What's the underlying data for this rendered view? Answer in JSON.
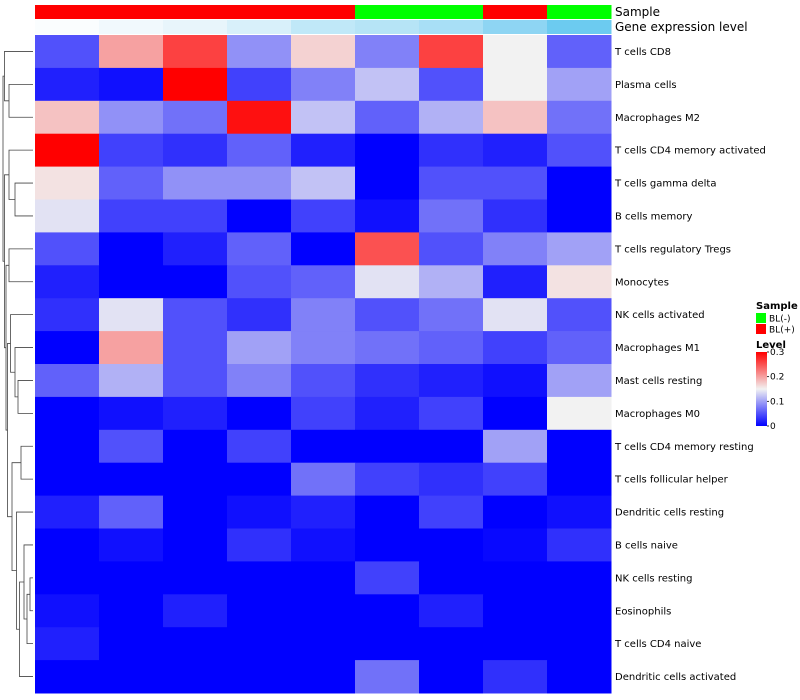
{
  "chart_data": {
    "type": "heatmap",
    "annotation_tracks": [
      {
        "name": "Sample",
        "colors": [
          "#ff0000",
          "#ff0000",
          "#ff0000",
          "#ff0000",
          "#ff0000",
          "#00ff00",
          "#00ff00",
          "#ff0000",
          "#00ff00"
        ]
      },
      {
        "name": "Gene expression level",
        "values": [
          0.3,
          0.28,
          0.25,
          0.2,
          0.18,
          0.17,
          0.14,
          0.1,
          0.05
        ],
        "colors": [
          "#fafdfe",
          "#f1f9fd",
          "#e8f5fb",
          "#d8f0fa",
          "#c0e8f8",
          "#b6e4f6",
          "#a8dff6",
          "#8ed5f3",
          "#6ccbf0"
        ]
      }
    ],
    "rows": [
      "T cells CD8",
      "Plasma cells",
      "Macrophages M2",
      "T cells CD4 memory activated",
      "T cells gamma delta",
      "B cells memory",
      "T cells regulatory  Tregs",
      "Monocytes",
      "NK cells activated",
      "Macrophages M1",
      "Mast cells resting",
      "Macrophages M0",
      "T cells CD4 memory resting",
      "T cells follicular helper",
      "Dendritic cells resting",
      "B cells naive",
      "NK cells resting",
      "Eosinophils",
      "T cells CD4 naive",
      "Dendritic cells activated"
    ],
    "values": [
      [
        0.05,
        0.2,
        0.26,
        0.09,
        0.17,
        0.08,
        0.26,
        0.15,
        0.06
      ],
      [
        0.02,
        0.01,
        0.3,
        0.04,
        0.08,
        0.12,
        0.05,
        0.15,
        0.1
      ],
      [
        0.18,
        0.09,
        0.07,
        0.29,
        0.12,
        0.06,
        0.11,
        0.18,
        0.07
      ],
      [
        0.3,
        0.04,
        0.03,
        0.06,
        0.02,
        0.0,
        0.03,
        0.02,
        0.05
      ],
      [
        0.16,
        0.06,
        0.09,
        0.09,
        0.12,
        0.0,
        0.05,
        0.05,
        0.0
      ],
      [
        0.14,
        0.04,
        0.04,
        0.0,
        0.04,
        0.01,
        0.07,
        0.03,
        0.0
      ],
      [
        0.05,
        0.0,
        0.02,
        0.06,
        0.0,
        0.25,
        0.05,
        0.08,
        0.1
      ],
      [
        0.02,
        0.0,
        0.0,
        0.05,
        0.06,
        0.14,
        0.11,
        0.02,
        0.16
      ],
      [
        0.03,
        0.14,
        0.05,
        0.03,
        0.08,
        0.05,
        0.07,
        0.14,
        0.05
      ],
      [
        0.0,
        0.2,
        0.05,
        0.1,
        0.08,
        0.07,
        0.06,
        0.04,
        0.06
      ],
      [
        0.06,
        0.11,
        0.05,
        0.08,
        0.05,
        0.03,
        0.02,
        0.01,
        0.1
      ],
      [
        0.0,
        0.01,
        0.02,
        0.0,
        0.04,
        0.02,
        0.04,
        0.0,
        0.15
      ],
      [
        0.0,
        0.05,
        0.0,
        0.04,
        0.0,
        0.0,
        0.0,
        0.1,
        0.0
      ],
      [
        0.0,
        0.0,
        0.0,
        0.0,
        0.07,
        0.04,
        0.03,
        0.04,
        0.0
      ],
      [
        0.02,
        0.06,
        0.0,
        0.01,
        0.02,
        0.0,
        0.04,
        0.0,
        0.01
      ],
      [
        0.0,
        0.01,
        0.0,
        0.03,
        0.01,
        0.0,
        0.0,
        0.005,
        0.03
      ],
      [
        0.0,
        0.0,
        0.0,
        0.0,
        0.0,
        0.04,
        0.0,
        0.0,
        0.0
      ],
      [
        0.01,
        0.0,
        0.02,
        0.0,
        0.0,
        0.0,
        0.02,
        0.0,
        0.0
      ],
      [
        0.02,
        0.0,
        0.0,
        0.0,
        0.0,
        0.0,
        0.0,
        0.0,
        0.0
      ],
      [
        0.0,
        0.0,
        0.0,
        0.0,
        0.0,
        0.07,
        0.0,
        0.03,
        0.0
      ]
    ],
    "color_scale": {
      "min": 0,
      "max": 0.3,
      "stops": [
        {
          "value": 0.0,
          "color": "#0000ff"
        },
        {
          "value": 0.15,
          "color": "#f2f2f2"
        },
        {
          "value": 0.3,
          "color": "#ff0000"
        }
      ]
    },
    "legend": {
      "sample_title": "Sample",
      "sample_entries": [
        {
          "label": "BL(-)",
          "color": "#00ff00"
        },
        {
          "label": "BL(+)",
          "color": "#ff0000"
        }
      ],
      "level_title": "Level",
      "level_ticks": [
        {
          "label": "0.3",
          "value": 0.3
        },
        {
          "label": "0.2",
          "value": 0.2
        },
        {
          "label": "0.1",
          "value": 0.1
        },
        {
          "label": "0",
          "value": 0.0
        }
      ]
    },
    "dendrogram": {
      "side": "left",
      "merges": [
        [
          16,
          17,
          0.1
        ],
        [
          18,
          20,
          0.2
        ],
        [
          15,
          21,
          0.3
        ],
        [
          19,
          22,
          0.45
        ],
        [
          12,
          13,
          0.4
        ],
        [
          14,
          23,
          0.55
        ],
        [
          24,
          25,
          0.7
        ],
        [
          10,
          11,
          0.5
        ],
        [
          9,
          27,
          0.6
        ],
        [
          8,
          28,
          0.75
        ],
        [
          26,
          29,
          0.85
        ],
        [
          6,
          7,
          0.8
        ],
        [
          30,
          31,
          0.9
        ],
        [
          4,
          5,
          0.6
        ],
        [
          3,
          33,
          0.8
        ],
        [
          32,
          34,
          0.95
        ],
        [
          1,
          2,
          0.8
        ],
        [
          0,
          36,
          0.95
        ],
        [
          35,
          37,
          1.0
        ]
      ]
    }
  }
}
